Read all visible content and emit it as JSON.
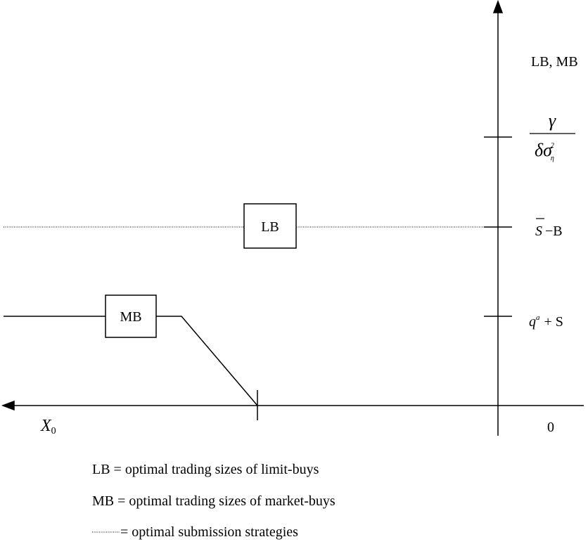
{
  "axis_label": "LB, MB",
  "y_ticks": [
    {
      "numerator": "γ",
      "denominator": "δσ",
      "denominator_sup": "2",
      "denominator_sub": "η"
    },
    {
      "base": "S",
      "rest": "−B"
    },
    {
      "base": "q",
      "sup": "a",
      "rest": "+ S"
    }
  ],
  "origin_label": "0",
  "x_label": {
    "base": "X",
    "sub": "0"
  },
  "boxes": [
    "LB",
    "MB"
  ],
  "legend": [
    "LB = optimal trading sizes of limit-buys",
    "MB = optimal trading sizes of market-buys",
    "= optimal submission strategies"
  ]
}
